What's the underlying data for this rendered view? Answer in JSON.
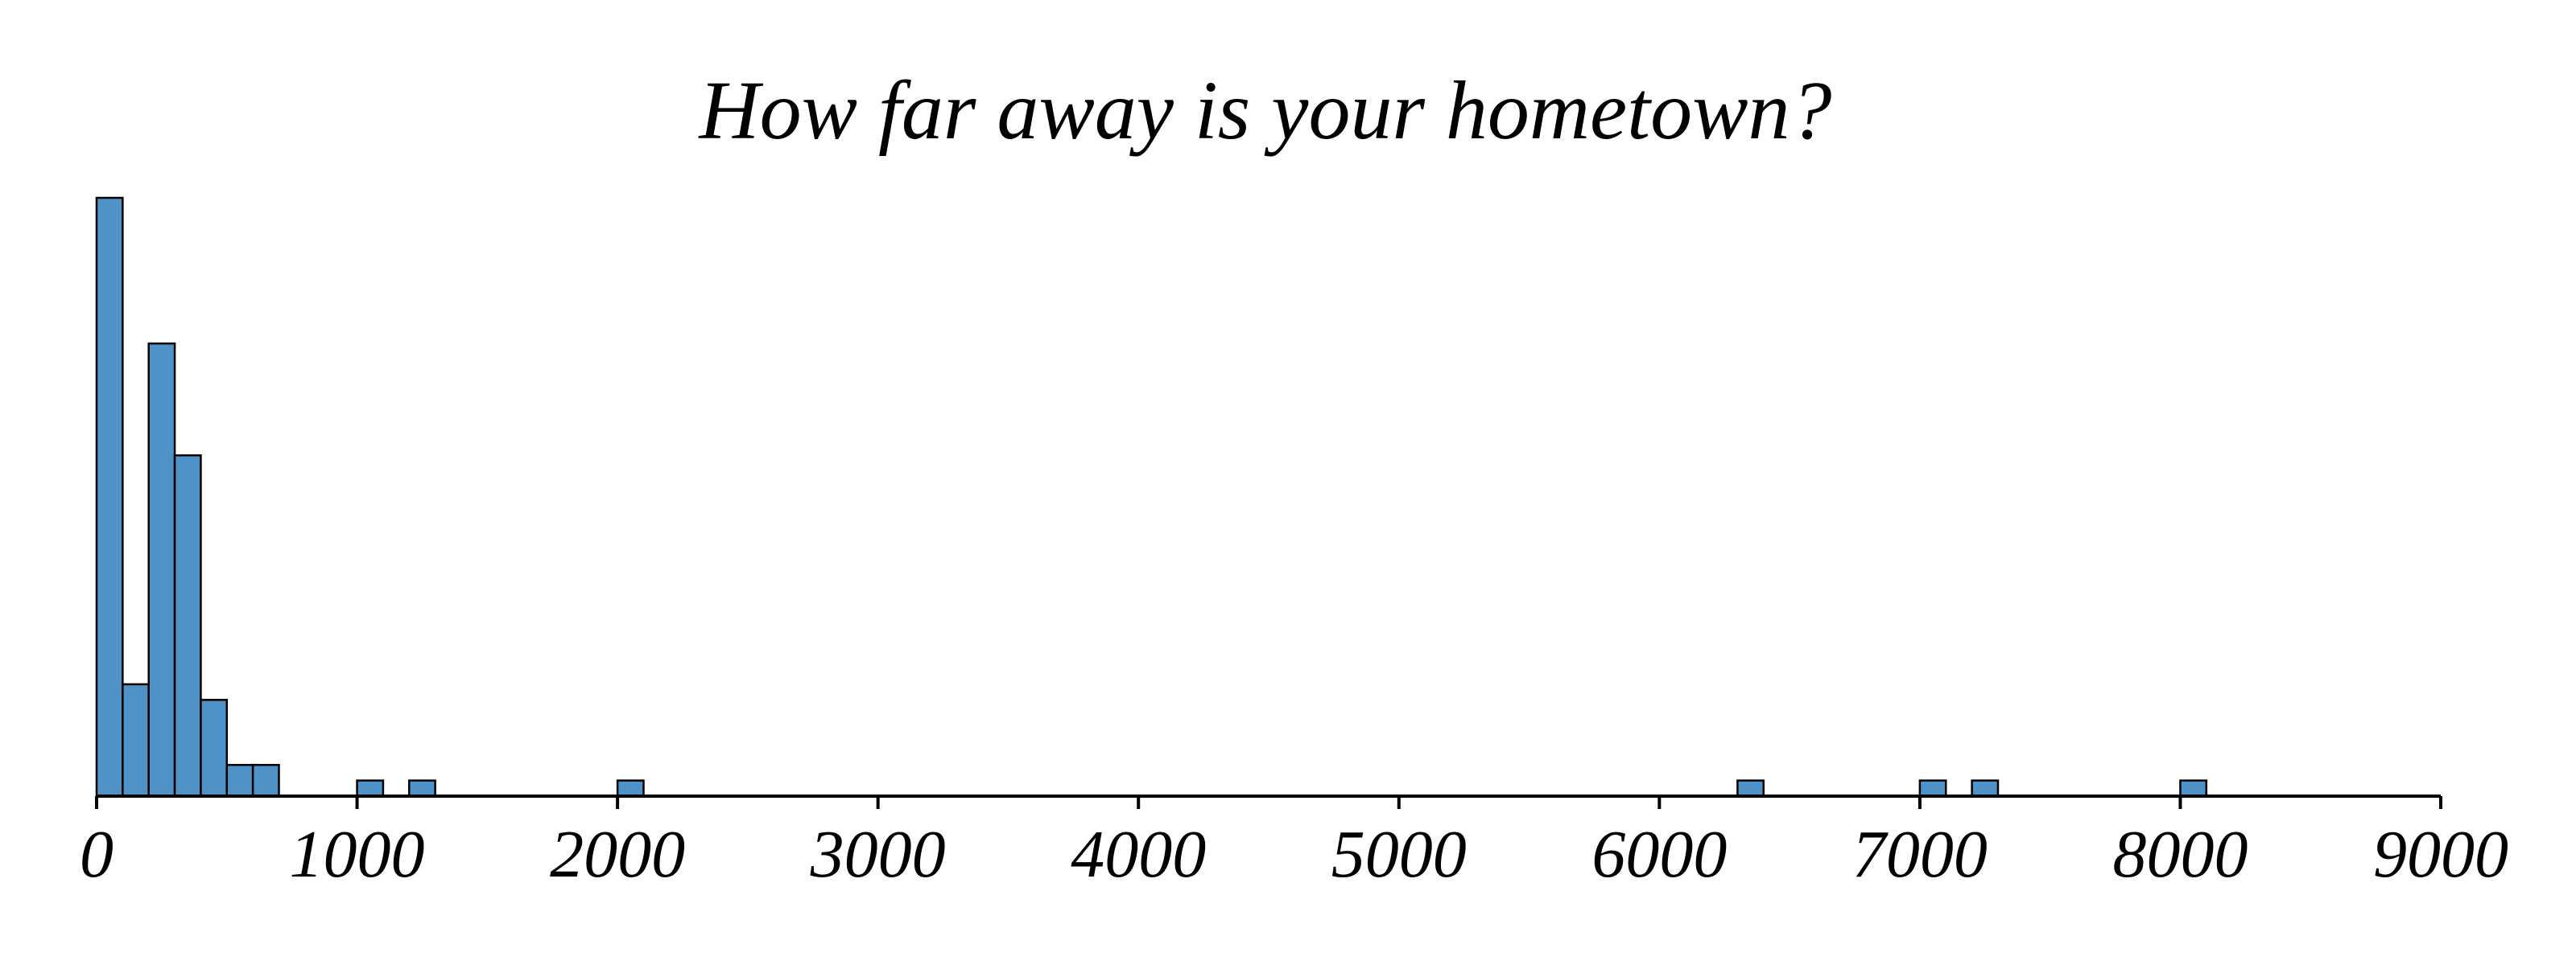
{
  "colors": {
    "bar_fill": "#4e92c8",
    "bar_edge": "#000000",
    "axis": "#000000",
    "background": "#ffffff"
  },
  "chart_data": {
    "type": "bar",
    "title": "How far away is your hometown?",
    "xlabel": "",
    "ylabel": "",
    "xlim": [
      0,
      9000
    ],
    "ylim": [
      0,
      23
    ],
    "bin_width": 100,
    "grid": false,
    "legend": "none",
    "x_ticks": [
      0,
      1000,
      2000,
      3000,
      4000,
      5000,
      6000,
      7000,
      8000,
      9000
    ],
    "x_tick_labels": [
      "0",
      "1000",
      "2000",
      "3000",
      "4000",
      "5000",
      "6000",
      "7000",
      "8000",
      "9000"
    ],
    "bins": [
      {
        "start": 0,
        "end": 100,
        "count": 23
      },
      {
        "start": 100,
        "end": 200,
        "count": 4.3
      },
      {
        "start": 200,
        "end": 300,
        "count": 17.4
      },
      {
        "start": 300,
        "end": 400,
        "count": 13.1
      },
      {
        "start": 400,
        "end": 500,
        "count": 3.7
      },
      {
        "start": 500,
        "end": 600,
        "count": 1.2
      },
      {
        "start": 600,
        "end": 700,
        "count": 1.2
      },
      {
        "start": 1000,
        "end": 1100,
        "count": 0.6
      },
      {
        "start": 1200,
        "end": 1300,
        "count": 0.6
      },
      {
        "start": 2000,
        "end": 2100,
        "count": 0.6
      },
      {
        "start": 6300,
        "end": 6400,
        "count": 0.6
      },
      {
        "start": 7000,
        "end": 7100,
        "count": 0.6
      },
      {
        "start": 7200,
        "end": 7300,
        "count": 0.6
      },
      {
        "start": 8000,
        "end": 8100,
        "count": 0.6
      }
    ]
  }
}
